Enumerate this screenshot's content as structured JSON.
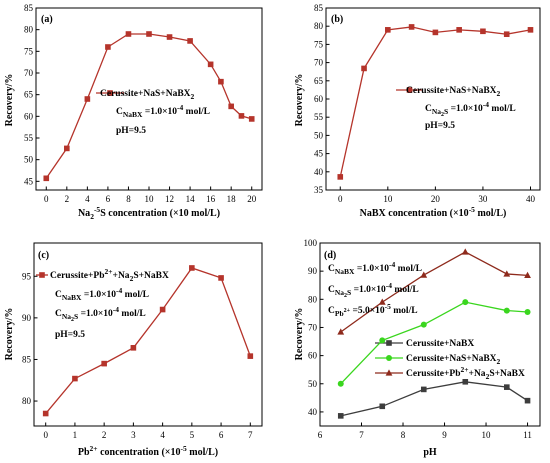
{
  "chart_data": [
    {
      "panel": "(a)",
      "type": "line",
      "xlabel": {
        "pre": "Na",
        "sub": "2",
        "post": "S concentration (×10",
        "sup": "-5",
        "tail": " mol/L)"
      },
      "ylabel": "Recovery/%",
      "xlim": [
        -1,
        21
      ],
      "ylim": [
        43,
        85
      ],
      "xticks": [
        0,
        2,
        4,
        6,
        8,
        10,
        12,
        14,
        16,
        18,
        20
      ],
      "yticks": [
        45,
        50,
        55,
        60,
        65,
        70,
        75,
        80,
        85
      ],
      "legend_position": "middle-left",
      "series": [
        {
          "name": {
            "pre": "Cerussite+Na",
            "sub": "2",
            "post": "S+NaBX"
          },
          "color": "#b5342b",
          "marker": "square",
          "x": [
            0,
            2,
            4,
            6,
            8,
            10,
            12,
            14,
            16,
            17,
            18,
            19,
            20
          ],
          "y": [
            45.7,
            52.6,
            64,
            76,
            79,
            79,
            78.3,
            77.4,
            72,
            68,
            62.3,
            60.1,
            59.4
          ]
        }
      ],
      "annotations": [
        {
          "pre": "C",
          "sub": "NaBX",
          "post": " =1.0×10",
          "sup": "-4",
          "tail": " mol/L"
        },
        {
          "pre": "pH=9.5"
        }
      ]
    },
    {
      "panel": "(b)",
      "type": "line",
      "xlabel": {
        "pre": "NaBX concentration (×10",
        "sup": "-5",
        "tail": " mol/L)"
      },
      "ylabel": "Recovery/%",
      "xlim": [
        -3,
        42
      ],
      "ylim": [
        35,
        85
      ],
      "xticks": [
        0,
        10,
        20,
        30,
        40
      ],
      "yticks": [
        35,
        40,
        45,
        50,
        55,
        60,
        65,
        70,
        75,
        80,
        85
      ],
      "legend_position": "middle-right",
      "series": [
        {
          "name": {
            "pre": "Cerussite+Na",
            "sub": "2",
            "post": "S+NaBX"
          },
          "color": "#b5342b",
          "marker": "square",
          "x": [
            0,
            5,
            10,
            15,
            20,
            25,
            30,
            35,
            40
          ],
          "y": [
            38.6,
            68.4,
            79,
            79.8,
            78.3,
            79,
            78.6,
            77.8,
            79
          ]
        }
      ],
      "annotations": [
        {
          "pre": "C",
          "sub": "Na2S",
          "post": " =1.0×10",
          "sup": "-4",
          "tail": " mol/L"
        },
        {
          "pre": "pH=9.5"
        }
      ]
    },
    {
      "panel": "(c)",
      "type": "line",
      "xlabel": {
        "pre": "Pb",
        "sup": "2+",
        "post": " concentration (×10",
        "sup2": "-5",
        "tail": " mol/L)"
      },
      "ylabel": "Recovery/%",
      "xlim": [
        -0.4,
        7.4
      ],
      "ylim": [
        77,
        99
      ],
      "xticks": [
        0,
        1,
        2,
        3,
        4,
        5,
        6,
        7
      ],
      "yticks": [
        80,
        85,
        90,
        95
      ],
      "legend_position": "top-left",
      "series": [
        {
          "name": {
            "pre": "Cerussite+Pb",
            "sup": "2+",
            "post": "+Na",
            "sub": "2",
            "tail": "S+NaBX"
          },
          "color": "#b5342b",
          "marker": "square",
          "x": [
            0,
            1,
            2,
            3,
            4,
            5,
            6,
            7
          ],
          "y": [
            78.5,
            82.7,
            84.5,
            86.4,
            91,
            96,
            94.8,
            85.4
          ]
        }
      ],
      "annotations": [
        {
          "pre": "C",
          "sub": "NaBX",
          "post": " =1.0×10",
          "sup": "-4",
          "tail": " mol/L"
        },
        {
          "pre": "C",
          "sub": "Na2S",
          "post": " =1.0×10",
          "sup": "-4",
          "tail": " mol/L"
        },
        {
          "pre": "pH=9.5"
        }
      ]
    },
    {
      "panel": "(d)",
      "type": "line",
      "xlabel": {
        "pre": "pH"
      },
      "ylabel": "Recovery/%",
      "xlim": [
        6,
        11.3
      ],
      "ylim": [
        35,
        100
      ],
      "xticks": [
        6,
        7,
        8,
        9,
        10,
        11
      ],
      "yticks": [
        40,
        50,
        60,
        70,
        80,
        90,
        100
      ],
      "legend_position": "bottom-right",
      "series": [
        {
          "name": {
            "pre": "Cerussite+NaBX"
          },
          "color": "#3d3d3d",
          "marker": "square",
          "x": [
            6.5,
            7.5,
            8.5,
            9.5,
            10.5,
            11
          ],
          "y": [
            38.6,
            42,
            48,
            50.7,
            48.8,
            44
          ]
        },
        {
          "name": {
            "pre": "Cerussite+Na",
            "sub": "2",
            "post": "S+NaBX"
          },
          "color": "#3ad61e",
          "marker": "circle",
          "x": [
            6.5,
            7.5,
            8.5,
            9.5,
            10.5,
            11
          ],
          "y": [
            50,
            65.4,
            71,
            79,
            76,
            75.5
          ]
        },
        {
          "name": {
            "pre": "Cerussite+Pb",
            "sup": "2+",
            "post": "+Na",
            "sub": "2",
            "tail": "S+NaBX"
          },
          "color": "#8e2a1c",
          "marker": "triangle",
          "x": [
            6.5,
            7.5,
            8.5,
            9.5,
            10.5,
            11
          ],
          "y": [
            68.4,
            79,
            88.6,
            96.8,
            89,
            88.5
          ]
        }
      ],
      "annotations": [
        {
          "pre": "C",
          "sub": "NaBX",
          "post": " =1.0×10",
          "sup": "-4",
          "tail": " mol/L"
        },
        {
          "pre": "C",
          "sub": "Na2S",
          "post": " =1.0×10",
          "sup": "-4",
          "tail": " mol/L"
        },
        {
          "pre": "C",
          "sub": "Pb2+",
          "post": " =5.0×10",
          "sup": "-5",
          "tail": " mol/L"
        }
      ]
    }
  ]
}
